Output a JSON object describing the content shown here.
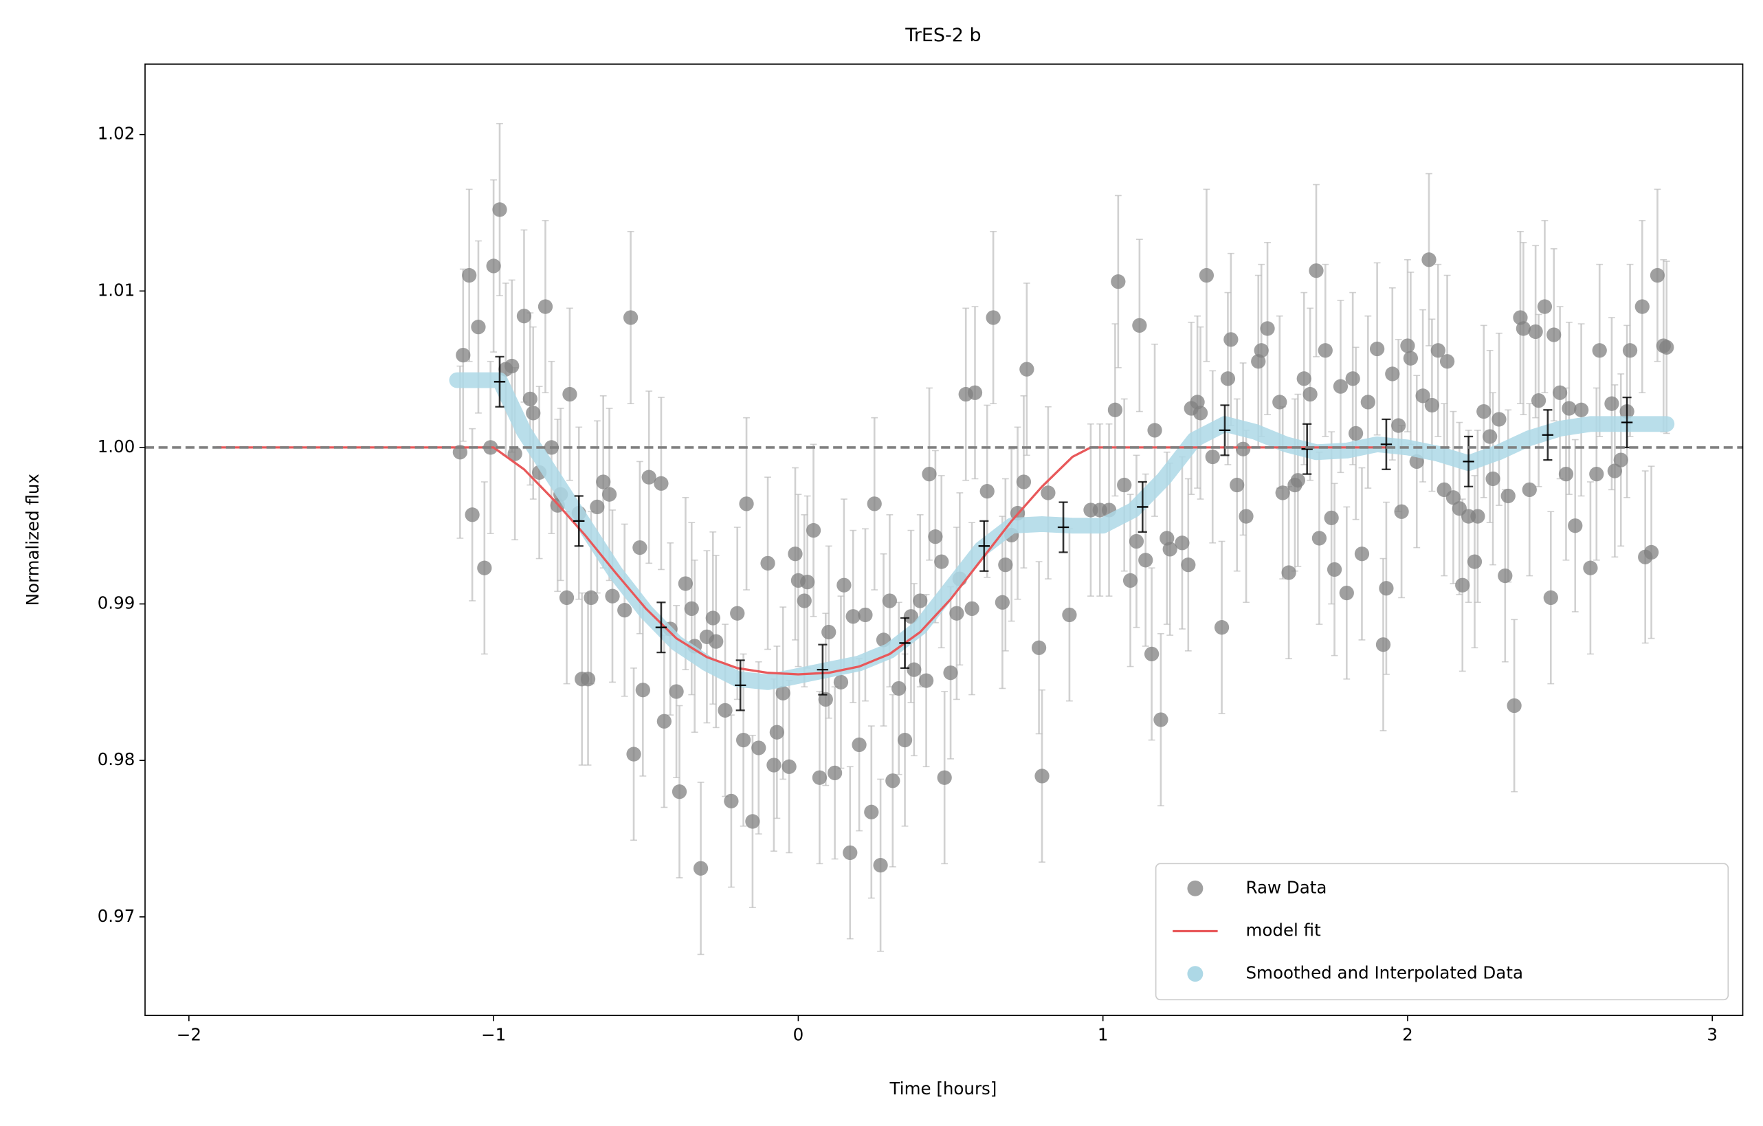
{
  "chart_data": {
    "type": "scatter",
    "title": "TrES-2 b",
    "x_label": "Time [hours]",
    "y_label": "Normalized flux",
    "xlim": [
      -2.144,
      3.1
    ],
    "ylim": [
      0.9637,
      1.0245
    ],
    "xticks": [
      {
        "value": -2,
        "label": "−2"
      },
      {
        "value": -1,
        "label": "−1"
      },
      0,
      1,
      2,
      3
    ],
    "yticks": [
      0.97,
      0.98,
      0.99,
      {
        "value": 1.0,
        "label": "1.00"
      },
      1.01,
      1.02
    ],
    "legend": "lower right",
    "reference_line": {
      "y": 1,
      "color": "#808080",
      "style": "dashed"
    },
    "series": [
      {
        "name": "Raw Data",
        "type": "scatter",
        "color": "#808080",
        "error": 0.0055,
        "x": [
          -1.11,
          -1.1,
          -1.08,
          -1.07,
          -1.05,
          -1.03,
          -1.01,
          -1.0,
          -0.98,
          -0.96,
          -0.94,
          -0.93,
          -0.9,
          -0.88,
          -0.87,
          -0.85,
          -0.83,
          -0.81,
          -0.79,
          -0.78,
          -0.76,
          -0.75,
          -0.72,
          -0.71,
          -0.69,
          -0.68,
          -0.66,
          -0.64,
          -0.62,
          -0.61,
          -0.57,
          -0.55,
          -0.54,
          -0.52,
          -0.51,
          -0.49,
          -0.45,
          -0.44,
          -0.42,
          -0.4,
          -0.39,
          -0.37,
          -0.35,
          -0.34,
          -0.32,
          -0.3,
          -0.28,
          -0.27,
          -0.24,
          -0.22,
          -0.2,
          -0.18,
          -0.17,
          -0.15,
          -0.13,
          -0.1,
          -0.08,
          -0.07,
          -0.05,
          -0.03,
          -0.01,
          0.0,
          0.02,
          0.03,
          0.05,
          0.07,
          0.09,
          0.1,
          0.12,
          0.14,
          0.15,
          0.17,
          0.18,
          0.2,
          0.22,
          0.24,
          0.25,
          0.27,
          0.28,
          0.3,
          0.31,
          0.33,
          0.35,
          0.37,
          0.38,
          0.4,
          0.42,
          0.43,
          0.45,
          0.47,
          0.48,
          0.5,
          0.52,
          0.53,
          0.55,
          0.57,
          0.58,
          0.62,
          0.64,
          0.67,
          0.68,
          0.7,
          0.72,
          0.74,
          0.75,
          0.79,
          0.8,
          0.82,
          0.89,
          0.96,
          0.99,
          1.02,
          1.04,
          1.05,
          1.07,
          1.09,
          1.11,
          1.12,
          1.14,
          1.16,
          1.17,
          1.19,
          1.21,
          1.22,
          1.26,
          1.28,
          1.29,
          1.31,
          1.32,
          1.34,
          1.36,
          1.39,
          1.41,
          1.42,
          1.44,
          1.46,
          1.47,
          1.51,
          1.52,
          1.54,
          1.58,
          1.59,
          1.61,
          1.63,
          1.64,
          1.66,
          1.68,
          1.7,
          1.71,
          1.73,
          1.75,
          1.76,
          1.78,
          1.8,
          1.82,
          1.83,
          1.85,
          1.87,
          1.9,
          1.92,
          1.93,
          1.95,
          1.97,
          1.98,
          2.0,
          2.01,
          2.03,
          2.05,
          2.07,
          2.08,
          2.1,
          2.12,
          2.13,
          2.15,
          2.17,
          2.18,
          2.2,
          2.22,
          2.23,
          2.25,
          2.27,
          2.28,
          2.3,
          2.32,
          2.33,
          2.35,
          2.37,
          2.38,
          2.4,
          2.42,
          2.43,
          2.45,
          2.47,
          2.48,
          2.5,
          2.52,
          2.53,
          2.55,
          2.57,
          2.6,
          2.62,
          2.63,
          2.67,
          2.68,
          2.7,
          2.72,
          2.73,
          2.77,
          2.78,
          2.8,
          2.82,
          2.84,
          2.85
        ],
        "values": [
          0.9997,
          1.0059,
          1.011,
          0.9957,
          1.0077,
          0.9923,
          1.0,
          1.0116,
          1.0152,
          1.005,
          1.0052,
          0.9996,
          1.0084,
          1.0031,
          1.0022,
          0.9984,
          1.009,
          1.0,
          0.9963,
          0.997,
          0.9904,
          1.0034,
          0.9958,
          0.9852,
          0.9852,
          0.9904,
          0.9962,
          0.9978,
          0.997,
          0.9905,
          0.9896,
          1.0083,
          0.9804,
          0.9936,
          0.9845,
          0.9981,
          0.9977,
          0.9825,
          0.9884,
          0.9844,
          0.978,
          0.9913,
          0.9897,
          0.9873,
          0.9731,
          0.9879,
          0.9891,
          0.9876,
          0.9832,
          0.9774,
          0.9894,
          0.9813,
          0.9964,
          0.9761,
          0.9808,
          0.9926,
          0.9797,
          0.9818,
          0.9843,
          0.9796,
          0.9932,
          0.9915,
          0.9902,
          0.9914,
          0.9947,
          0.9789,
          0.9839,
          0.9882,
          0.9792,
          0.985,
          0.9912,
          0.9741,
          0.9892,
          0.981,
          0.9893,
          0.9767,
          0.9964,
          0.9733,
          0.9877,
          0.9902,
          0.9787,
          0.9846,
          0.9813,
          0.9892,
          0.9858,
          0.9902,
          0.9851,
          0.9983,
          0.9943,
          0.9927,
          0.9789,
          0.9856,
          0.9894,
          0.9916,
          1.0034,
          0.9897,
          1.0035,
          0.9972,
          1.0083,
          0.9901,
          0.9925,
          0.9944,
          0.9958,
          0.9978,
          1.005,
          0.9872,
          0.979,
          0.9971,
          0.9893,
          0.996,
          0.996,
          0.996,
          1.0024,
          1.0106,
          0.9976,
          0.9915,
          0.994,
          1.0078,
          0.9928,
          0.9868,
          1.0011,
          0.9826,
          0.9942,
          0.9935,
          0.9939,
          0.9925,
          1.0025,
          1.0029,
          1.0022,
          1.011,
          0.9994,
          0.9885,
          1.0044,
          1.0069,
          0.9976,
          0.9999,
          0.9956,
          1.0055,
          1.0062,
          1.0076,
          1.0029,
          0.9971,
          0.992,
          0.9976,
          0.9979,
          1.0044,
          1.0034,
          1.0113,
          0.9942,
          1.0062,
          0.9955,
          0.9922,
          1.0039,
          0.9907,
          1.0044,
          1.0009,
          0.9932,
          1.0029,
          1.0063,
          0.9874,
          0.991,
          1.0047,
          1.0014,
          0.9959,
          1.0065,
          1.0057,
          0.9991,
          1.0033,
          1.012,
          1.0027,
          1.0062,
          0.9973,
          1.0055,
          0.9968,
          0.9961,
          0.9912,
          0.9956,
          0.9927,
          0.9956,
          1.0023,
          1.0007,
          0.998,
          1.0018,
          0.9918,
          0.9969,
          0.9835,
          1.0083,
          1.0076,
          0.9973,
          1.0074,
          1.003,
          1.009,
          0.9904,
          1.0072,
          1.0035,
          0.9983,
          1.0025,
          0.995,
          1.0024,
          0.9923,
          0.9983,
          1.0062,
          1.0028,
          0.9985,
          0.9992,
          1.0023,
          1.0062,
          1.009,
          0.993,
          0.9933,
          1.011,
          1.0065,
          1.0064
        ]
      },
      {
        "name": "model fit",
        "type": "line",
        "color": "#e8585a",
        "x": [
          -1.91,
          -1.0,
          -0.9,
          -0.8,
          -0.7,
          -0.6,
          -0.5,
          -0.4,
          -0.3,
          -0.2,
          -0.1,
          0,
          0.1,
          0.2,
          0.3,
          0.4,
          0.5,
          0.6,
          0.7,
          0.8,
          0.9,
          0.96,
          1.93
        ],
        "values": [
          1.0,
          1.0,
          0.9986,
          0.9966,
          0.9944,
          0.992,
          0.9897,
          0.9878,
          0.9866,
          0.9859,
          0.9856,
          0.9855,
          0.9856,
          0.986,
          0.9868,
          0.9882,
          0.9903,
          0.9928,
          0.9953,
          0.9975,
          0.9994,
          1.0,
          1.0
        ]
      },
      {
        "name": "Smoothed and Interpolated Data",
        "type": "smooth",
        "color": "#add8e6",
        "x": [
          -1.12,
          -0.98,
          -0.9,
          -0.8,
          -0.7,
          -0.6,
          -0.5,
          -0.4,
          -0.3,
          -0.2,
          -0.1,
          0,
          0.1,
          0.2,
          0.3,
          0.4,
          0.5,
          0.6,
          0.7,
          0.8,
          0.9,
          1.0,
          1.1,
          1.2,
          1.3,
          1.4,
          1.5,
          1.6,
          1.7,
          1.8,
          1.9,
          2.0,
          2.1,
          2.2,
          2.3,
          2.4,
          2.5,
          2.6,
          2.7,
          2.85
        ],
        "values": [
          1.0043,
          1.0043,
          1.001,
          0.998,
          0.995,
          0.992,
          0.9895,
          0.9875,
          0.9862,
          0.9852,
          0.985,
          0.9854,
          0.9858,
          0.9862,
          0.987,
          0.9885,
          0.991,
          0.9935,
          0.995,
          0.9951,
          0.995,
          0.995,
          0.996,
          0.998,
          1.0005,
          1.0015,
          1.001,
          1.0002,
          0.9997,
          0.9998,
          1.0002,
          1.0,
          0.9996,
          0.999,
          0.9997,
          1.0006,
          1.0012,
          1.0015,
          1.0015,
          1.0015
        ]
      },
      {
        "type": "errorbar",
        "color": "#000000",
        "error": 0.0016,
        "x": [
          -0.98,
          -0.72,
          -0.45,
          -0.19,
          0.08,
          0.35,
          0.61,
          0.87,
          1.13,
          1.4,
          1.67,
          1.93,
          2.2,
          2.46,
          2.72
        ],
        "values": [
          1.0042,
          0.9953,
          0.9885,
          0.9848,
          0.9858,
          0.9875,
          0.9937,
          0.9949,
          0.9962,
          1.0011,
          0.9999,
          1.0002,
          0.9991,
          1.0008,
          1.0016
        ]
      }
    ]
  }
}
